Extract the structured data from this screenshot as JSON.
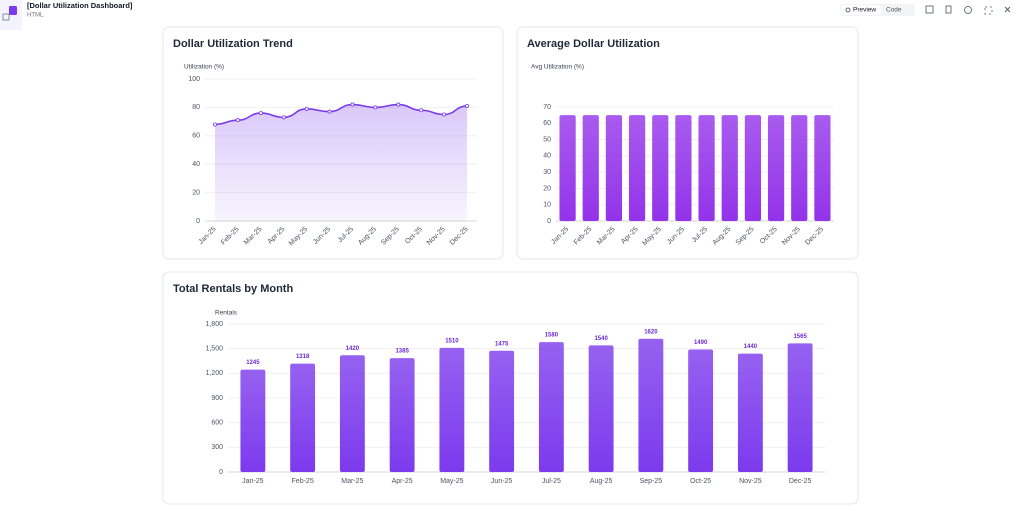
{
  "header": {
    "title": "[Dollar Utilization Dashboard]",
    "subtitle": "HTML"
  },
  "toolbar": {
    "preview": "Preview",
    "code": "Code"
  },
  "chart_data": [
    {
      "type": "line",
      "title": "Dollar Utilization Trend",
      "y_label": "Utilization (%)",
      "categories": [
        "Jan-25",
        "Feb-25",
        "Mar-25",
        "Apr-25",
        "May-25",
        "Jun-25",
        "Jul-25",
        "Aug-25",
        "Sep-25",
        "Oct-25",
        "Nov-25",
        "Dec-25"
      ],
      "values": [
        68,
        71,
        76,
        73,
        79,
        77,
        82,
        80,
        82,
        78,
        75,
        81
      ],
      "color": "#7c3aed",
      "area": true,
      "ylim": [
        0,
        100
      ],
      "yticks": [
        0,
        20,
        40,
        60,
        80,
        100
      ],
      "grid": true
    },
    {
      "type": "bar",
      "title": "Average Dollar Utilization",
      "y_label": "Avg Utilization (%)",
      "categories": [
        "Jan-25",
        "Feb-25",
        "Mar-25",
        "Apr-25",
        "May-25",
        "Jun-25",
        "Jul-25",
        "Aug-25",
        "Sep-25",
        "Oct-25",
        "Nov-25",
        "Dec-25"
      ],
      "values": [
        65,
        65,
        65,
        65,
        65,
        65,
        65,
        65,
        65,
        65,
        65,
        65
      ],
      "color": "#9333ea",
      "ylim": [
        0,
        70
      ],
      "yticks": [
        0,
        10,
        20,
        30,
        40,
        50,
        60,
        70
      ],
      "grid": true
    },
    {
      "type": "bar",
      "title": "Total Rentals by Month",
      "y_label": "Rentals",
      "categories": [
        "Jan-25",
        "Feb-25",
        "Mar-25",
        "Apr-25",
        "May-25",
        "Jun-25",
        "Jul-25",
        "Aug-25",
        "Sep-25",
        "Oct-25",
        "Nov-25",
        "Dec-25"
      ],
      "values": [
        1245,
        1318,
        1420,
        1385,
        1510,
        1475,
        1580,
        1540,
        1620,
        1490,
        1440,
        1565
      ],
      "color": "#7c3aed",
      "data_labels": true,
      "ylim": [
        0,
        1800
      ],
      "yticks": [
        0,
        300,
        600,
        900,
        {
          "value": 1200,
          "label": "1,200"
        },
        {
          "value": 1500,
          "label": "1,500"
        },
        {
          "value": 1800,
          "label": "1,800"
        }
      ],
      "grid": true
    }
  ]
}
